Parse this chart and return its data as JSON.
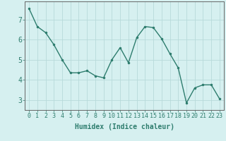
{
  "x": [
    0,
    1,
    2,
    3,
    4,
    5,
    6,
    7,
    8,
    9,
    10,
    11,
    12,
    13,
    14,
    15,
    16,
    17,
    18,
    19,
    20,
    21,
    22,
    23
  ],
  "y": [
    7.55,
    6.65,
    6.35,
    5.75,
    5.0,
    4.35,
    4.35,
    4.45,
    4.2,
    4.1,
    5.0,
    5.6,
    4.85,
    6.1,
    6.65,
    6.6,
    6.05,
    5.3,
    4.6,
    2.85,
    3.6,
    3.75,
    3.75,
    3.05
  ],
  "line_color": "#2e7d6e",
  "marker": ".",
  "marker_size": 3,
  "bg_color": "#d6f0f0",
  "grid_color": "#b8dada",
  "xlabel": "Humidex (Indice chaleur)",
  "xlabel_fontsize": 7,
  "ytick_values": [
    3,
    4,
    5,
    6,
    7
  ],
  "xtick_values": [
    0,
    1,
    2,
    3,
    4,
    5,
    6,
    7,
    8,
    9,
    10,
    11,
    12,
    13,
    14,
    15,
    16,
    17,
    18,
    19,
    20,
    21,
    22,
    23
  ],
  "ylim": [
    2.5,
    7.9
  ],
  "xlim": [
    -0.5,
    23.5
  ],
  "tick_color": "#2e7d6e",
  "tick_fontsize": 6,
  "axis_color": "#666666",
  "linewidth": 1.0
}
